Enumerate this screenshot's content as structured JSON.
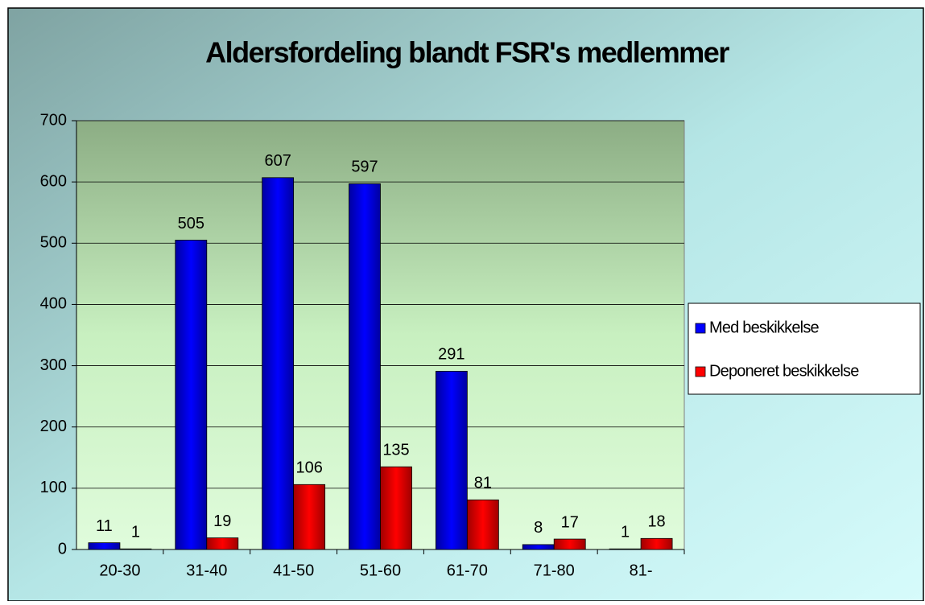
{
  "chart_data": {
    "type": "bar",
    "title": "Aldersfordeling blandt FSR's medlemmer",
    "categories": [
      "20-30",
      "31-40",
      "41-50",
      "51-60",
      "61-70",
      "71-80",
      "81-"
    ],
    "series": [
      {
        "name": "Med beskikkelse",
        "color": "#0000ff",
        "values": [
          11,
          505,
          607,
          597,
          291,
          8,
          1
        ]
      },
      {
        "name": "Deponeret beskikkelse",
        "color": "#ff0000",
        "values": [
          1,
          19,
          106,
          135,
          81,
          17,
          18
        ]
      }
    ],
    "ylim": [
      0,
      700
    ],
    "yticks": [
      0,
      100,
      200,
      300,
      400,
      500,
      600,
      700
    ],
    "grid": true,
    "legend": "right"
  }
}
